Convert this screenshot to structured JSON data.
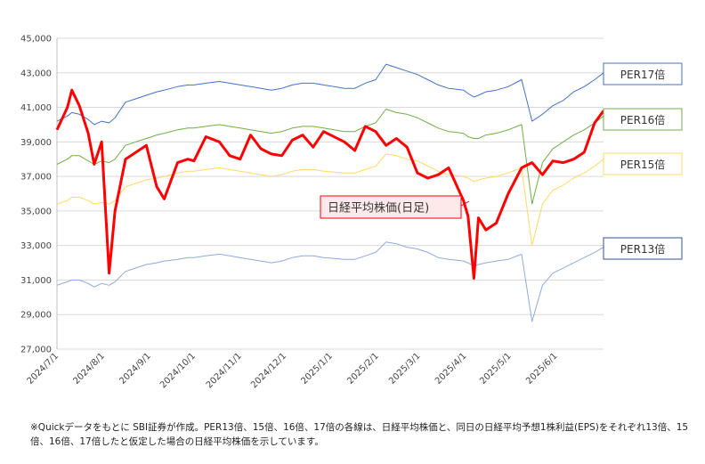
{
  "chart_data": {
    "type": "line",
    "y_ticks": [
      27000,
      29000,
      31000,
      33000,
      35000,
      37000,
      39000,
      41000,
      43000,
      45000
    ],
    "ylim": [
      27000,
      45000
    ],
    "x_ticks": [
      "2024/7/1",
      "2024/8/1",
      "2024/9/1",
      "2024/10/1",
      "2024/11/1",
      "2024/12/1",
      "2025/1/1",
      "2025/2/1",
      "2025/3/1",
      "2025/4/1",
      "2025/5/1",
      "2025/6/1"
    ],
    "xlim": [
      "2024-07-01",
      "2025-07-03"
    ],
    "grid": "horizontal",
    "x": [
      "2024-07-01",
      "2024-07-08",
      "2024-07-11",
      "2024-07-16",
      "2024-07-22",
      "2024-07-26",
      "2024-07-31",
      "2024-08-05",
      "2024-08-09",
      "2024-08-16",
      "2024-08-23",
      "2024-08-30",
      "2024-09-06",
      "2024-09-11",
      "2024-09-20",
      "2024-09-27",
      "2024-10-01",
      "2024-10-09",
      "2024-10-18",
      "2024-10-25",
      "2024-11-01",
      "2024-11-08",
      "2024-11-15",
      "2024-11-22",
      "2024-11-29",
      "2024-12-06",
      "2024-12-13",
      "2024-12-20",
      "2024-12-27",
      "2025-01-10",
      "2025-01-17",
      "2025-01-24",
      "2025-01-31",
      "2025-02-07",
      "2025-02-14",
      "2025-02-21",
      "2025-02-28",
      "2025-03-07",
      "2025-03-14",
      "2025-03-21",
      "2025-03-31",
      "2025-04-03",
      "2025-04-07",
      "2025-04-10",
      "2025-04-15",
      "2025-04-22",
      "2025-04-30",
      "2025-05-09",
      "2025-05-16",
      "2025-05-23",
      "2025-05-30",
      "2025-06-06",
      "2025-06-13",
      "2025-06-20",
      "2025-06-27",
      "2025-07-03"
    ],
    "series": [
      {
        "name": "日経平均株価(日足)",
        "color": "#ff0000",
        "values": [
          39700,
          41000,
          42000,
          41100,
          39500,
          37700,
          39000,
          31400,
          35000,
          38000,
          38400,
          38800,
          36400,
          35700,
          37800,
          38000,
          37900,
          39300,
          39000,
          38200,
          38000,
          39400,
          38600,
          38300,
          38200,
          39100,
          39400,
          38700,
          39600,
          39000,
          38500,
          39900,
          39600,
          38800,
          39200,
          38700,
          37200,
          36900,
          37100,
          37500,
          35600,
          34700,
          31100,
          34600,
          33900,
          34300,
          36000,
          37500,
          37800,
          37100,
          37900,
          37800,
          38000,
          38400,
          40100,
          40800
        ]
      },
      {
        "name": "PER17倍",
        "color": "#4472c4",
        "values": [
          40200,
          40500,
          40700,
          40600,
          40300,
          40000,
          40200,
          40100,
          40400,
          41300,
          41500,
          41700,
          41900,
          42000,
          42200,
          42300,
          42300,
          42400,
          42500,
          42400,
          42300,
          42200,
          42100,
          42000,
          42100,
          42300,
          42400,
          42400,
          42300,
          42100,
          42100,
          42400,
          42600,
          43500,
          43300,
          43100,
          42900,
          42600,
          42300,
          42100,
          42000,
          41800,
          41600,
          41700,
          41900,
          42000,
          42200,
          42600,
          40200,
          40600,
          41100,
          41400,
          41900,
          42200,
          42600,
          43000
        ]
      },
      {
        "name": "PER16倍",
        "color": "#70ad47",
        "values": [
          37700,
          38000,
          38200,
          38200,
          37900,
          37700,
          37900,
          37800,
          38000,
          38800,
          39000,
          39200,
          39400,
          39500,
          39700,
          39800,
          39800,
          39900,
          40000,
          39900,
          39800,
          39700,
          39600,
          39500,
          39600,
          39800,
          39900,
          39900,
          39800,
          39600,
          39600,
          39900,
          40100,
          40900,
          40700,
          40600,
          40400,
          40100,
          39800,
          39600,
          39500,
          39300,
          39200,
          39200,
          39400,
          39500,
          39700,
          40000,
          35400,
          37800,
          38600,
          39000,
          39400,
          39700,
          40100,
          40500
        ]
      },
      {
        "name": "PER15倍",
        "color": "#ffd966",
        "values": [
          35400,
          35600,
          35800,
          35800,
          35600,
          35400,
          35500,
          35400,
          35600,
          36400,
          36600,
          36800,
          36900,
          37000,
          37200,
          37300,
          37300,
          37400,
          37500,
          37400,
          37300,
          37200,
          37100,
          37000,
          37100,
          37300,
          37400,
          37400,
          37300,
          37200,
          37200,
          37400,
          37600,
          38300,
          38200,
          38000,
          37900,
          37600,
          37300,
          37100,
          37000,
          36900,
          36700,
          36800,
          36900,
          37000,
          37200,
          37500,
          33000,
          35400,
          36200,
          36500,
          36900,
          37200,
          37600,
          38000
        ]
      },
      {
        "name": "PER13倍",
        "color": "#8faadc",
        "values": [
          30700,
          30900,
          31000,
          31000,
          30800,
          30600,
          30800,
          30700,
          30900,
          31500,
          31700,
          31900,
          32000,
          32100,
          32200,
          32300,
          32300,
          32400,
          32500,
          32400,
          32300,
          32200,
          32100,
          32000,
          32100,
          32300,
          32400,
          32400,
          32300,
          32200,
          32200,
          32400,
          32600,
          33200,
          33100,
          32900,
          32800,
          32600,
          32300,
          32200,
          32100,
          32000,
          31800,
          31900,
          32000,
          32100,
          32200,
          32500,
          28600,
          30700,
          31400,
          31700,
          32000,
          32300,
          32600,
          32900
        ]
      }
    ],
    "labels": {
      "nikkei": "日経平均株価(日足)",
      "per17": "PER17倍",
      "per16": "PER16倍",
      "per15": "PER15倍",
      "per13": "PER13倍"
    }
  },
  "footnote": "※Quickデータをもとに SBI証券が作成。PER13倍、15倍、16倍、17倍の各線は、日経平均株価と、同日の日経平均予想1株利益(EPS)をそれぞれ13倍、15倍、16倍、17倍したと仮定した場合の日経平均株価を示しています。"
}
